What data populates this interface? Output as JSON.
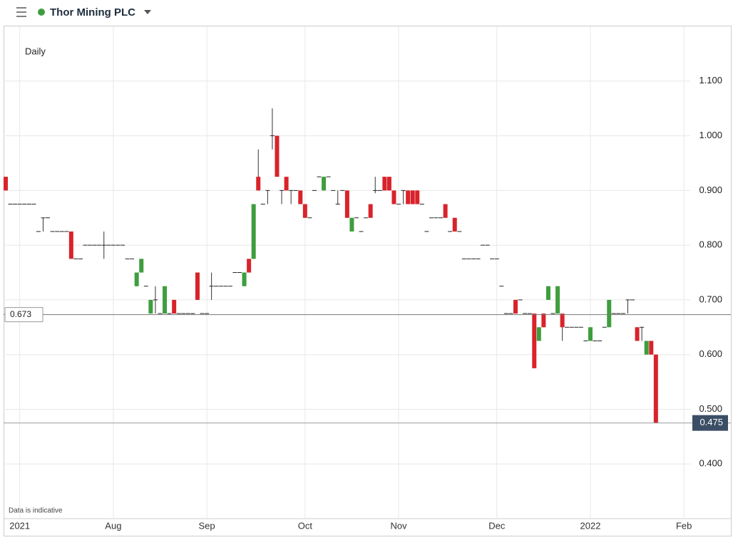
{
  "header": {
    "title": "Thor Mining PLC"
  },
  "chart_data": {
    "type": "candlestick",
    "timeframe": "Daily",
    "note": "Data is indicative",
    "categories": [
      null,
      null,
      null,
      "2021",
      null,
      null,
      null,
      null,
      null,
      null,
      null,
      null,
      null,
      null,
      null,
      null,
      null,
      null,
      null,
      null,
      null,
      null,
      null,
      "Aug",
      null,
      null,
      null,
      null,
      null,
      null,
      null,
      null,
      null,
      null,
      null,
      null,
      null,
      null,
      null,
      null,
      null,
      null,
      null,
      "Sep",
      null,
      null,
      null,
      null,
      null,
      null,
      null,
      null,
      null,
      null,
      null,
      null,
      null,
      null,
      null,
      null,
      null,
      null,
      null,
      null,
      "Oct",
      null,
      null,
      null,
      null,
      null,
      null,
      null,
      null,
      null,
      null,
      null,
      null,
      null,
      null,
      null,
      null,
      null,
      null,
      null,
      "Nov",
      null,
      null,
      null,
      null,
      null,
      null,
      null,
      null,
      null,
      null,
      null,
      null,
      null,
      null,
      null,
      null,
      null,
      null,
      null,
      null,
      "Dec",
      null,
      null,
      null,
      null,
      null,
      null,
      null,
      null,
      null,
      null,
      null,
      null,
      null,
      null,
      null,
      null,
      null,
      null,
      null,
      "2022",
      null,
      null,
      null,
      null,
      null,
      null,
      null,
      null,
      null,
      null,
      null,
      null,
      null,
      null,
      null,
      null,
      null,
      null,
      null,
      "Feb"
    ],
    "open": [
      0.925,
      0.875,
      0.875,
      0.875,
      0.875,
      0.875,
      0.875,
      0.825,
      0.85,
      0.85,
      0.825,
      0.825,
      0.825,
      0.825,
      0.825,
      0.775,
      0.775,
      0.8,
      0.8,
      0.8,
      0.8,
      0.8,
      0.8,
      0.8,
      0.8,
      0.8,
      0.775,
      0.775,
      0.725,
      0.75,
      0.725,
      0.675,
      0.7,
      0.675,
      0.675,
      0.675,
      0.7,
      0.675,
      0.675,
      0.675,
      0.675,
      0.75,
      0.675,
      0.675,
      0.725,
      0.725,
      0.725,
      0.725,
      0.725,
      0.75,
      0.75,
      0.725,
      0.775,
      0.775,
      0.925,
      0.875,
      0.9,
      1.0,
      1.0,
      0.9,
      0.925,
      0.9,
      0.9,
      0.9,
      0.875,
      0.85,
      0.9,
      0.925,
      0.9,
      0.925,
      0.9,
      0.875,
      0.9,
      0.9,
      0.825,
      0.85,
      0.825,
      0.85,
      0.875,
      0.9,
      0.9,
      0.925,
      0.925,
      0.9,
      0.875,
      0.9,
      0.9,
      0.9,
      0.9,
      0.875,
      0.825,
      0.85,
      0.85,
      0.85,
      0.875,
      0.825,
      0.85,
      0.825,
      0.775,
      0.775,
      0.775,
      0.775,
      0.8,
      0.8,
      0.775,
      0.775,
      0.725,
      0.675,
      0.675,
      0.7,
      0.7,
      0.675,
      0.675,
      0.675,
      0.625,
      0.675,
      0.7,
      0.675,
      0.675,
      0.675,
      0.65,
      0.65,
      0.65,
      0.65,
      0.625,
      0.625,
      0.625,
      0.625,
      0.65,
      0.65,
      0.675,
      0.675,
      0.675,
      0.7,
      0.7,
      0.65,
      0.65,
      0.6,
      0.625,
      0.6,
      null,
      null,
      null,
      null,
      null,
      null
    ],
    "high": [
      0.925,
      0.875,
      0.875,
      0.875,
      0.875,
      0.875,
      0.875,
      0.825,
      0.85,
      0.85,
      0.825,
      0.825,
      0.825,
      0.825,
      0.825,
      0.775,
      0.775,
      0.8,
      0.8,
      0.8,
      0.8,
      0.825,
      0.8,
      0.8,
      0.8,
      0.8,
      0.775,
      0.775,
      0.75,
      0.775,
      0.725,
      0.7,
      0.725,
      0.675,
      0.725,
      0.675,
      0.7,
      0.675,
      0.675,
      0.675,
      0.675,
      0.75,
      0.675,
      0.675,
      0.75,
      0.725,
      0.725,
      0.725,
      0.725,
      0.75,
      0.75,
      0.75,
      0.775,
      0.875,
      0.975,
      0.875,
      0.9,
      1.05,
      1.0,
      0.9,
      0.925,
      0.9,
      0.9,
      0.9,
      0.875,
      0.85,
      0.9,
      0.925,
      0.925,
      0.925,
      0.9,
      0.9,
      0.9,
      0.9,
      0.85,
      0.85,
      0.825,
      0.85,
      0.875,
      0.925,
      0.9,
      0.925,
      0.925,
      0.9,
      0.875,
      0.9,
      0.9,
      0.9,
      0.9,
      0.875,
      0.825,
      0.85,
      0.85,
      0.85,
      0.875,
      0.825,
      0.85,
      0.825,
      0.775,
      0.775,
      0.775,
      0.775,
      0.8,
      0.8,
      0.775,
      0.775,
      0.725,
      0.675,
      0.675,
      0.7,
      0.7,
      0.675,
      0.675,
      0.675,
      0.65,
      0.675,
      0.725,
      0.675,
      0.725,
      0.675,
      0.65,
      0.65,
      0.65,
      0.65,
      0.625,
      0.65,
      0.625,
      0.625,
      0.65,
      0.7,
      0.675,
      0.675,
      0.675,
      0.7,
      0.7,
      0.65,
      0.65,
      0.625,
      0.625,
      0.6,
      null,
      null,
      null,
      null,
      null,
      null
    ],
    "low": [
      0.9,
      0.875,
      0.875,
      0.875,
      0.875,
      0.875,
      0.875,
      0.825,
      0.825,
      0.85,
      0.825,
      0.825,
      0.825,
      0.825,
      0.775,
      0.775,
      0.775,
      0.8,
      0.8,
      0.8,
      0.8,
      0.775,
      0.8,
      0.8,
      0.8,
      0.8,
      0.775,
      0.775,
      0.725,
      0.75,
      0.725,
      0.675,
      0.675,
      0.675,
      0.675,
      0.675,
      0.675,
      0.675,
      0.675,
      0.675,
      0.675,
      0.7,
      0.675,
      0.675,
      0.7,
      0.725,
      0.725,
      0.725,
      0.725,
      0.75,
      0.75,
      0.725,
      0.75,
      0.775,
      0.9,
      0.875,
      0.875,
      0.975,
      0.925,
      0.875,
      0.9,
      0.875,
      0.9,
      0.875,
      0.85,
      0.85,
      0.9,
      0.925,
      0.9,
      0.925,
      0.9,
      0.875,
      0.9,
      0.85,
      0.825,
      0.85,
      0.825,
      0.85,
      0.85,
      0.895,
      0.9,
      0.9,
      0.9,
      0.875,
      0.875,
      0.875,
      0.875,
      0.875,
      0.875,
      0.875,
      0.825,
      0.85,
      0.85,
      0.85,
      0.85,
      0.825,
      0.825,
      0.825,
      0.775,
      0.775,
      0.775,
      0.775,
      0.8,
      0.8,
      0.775,
      0.775,
      0.725,
      0.675,
      0.675,
      0.675,
      0.7,
      0.675,
      0.675,
      0.575,
      0.625,
      0.65,
      0.7,
      0.675,
      0.675,
      0.625,
      0.65,
      0.65,
      0.65,
      0.65,
      0.625,
      0.625,
      0.625,
      0.625,
      0.65,
      0.65,
      0.675,
      0.675,
      0.675,
      0.675,
      0.7,
      0.625,
      0.625,
      0.6,
      0.6,
      0.475,
      null,
      null,
      null,
      null,
      null,
      null
    ],
    "close": [
      0.9,
      0.875,
      0.875,
      0.875,
      0.875,
      0.875,
      0.875,
      0.825,
      0.85,
      0.85,
      0.825,
      0.825,
      0.825,
      0.825,
      0.775,
      0.775,
      0.775,
      0.8,
      0.8,
      0.8,
      0.8,
      0.8,
      0.8,
      0.8,
      0.8,
      0.8,
      0.775,
      0.775,
      0.75,
      0.775,
      0.725,
      0.7,
      0.7,
      0.675,
      0.725,
      0.675,
      0.675,
      0.675,
      0.675,
      0.675,
      0.675,
      0.7,
      0.675,
      0.675,
      0.725,
      0.725,
      0.725,
      0.725,
      0.725,
      0.75,
      0.75,
      0.75,
      0.75,
      0.875,
      0.9,
      0.875,
      0.9,
      1.0,
      0.925,
      0.9,
      0.9,
      0.9,
      0.9,
      0.875,
      0.85,
      0.85,
      0.9,
      0.925,
      0.925,
      0.925,
      0.9,
      0.875,
      0.9,
      0.85,
      0.85,
      0.85,
      0.825,
      0.85,
      0.85,
      0.9,
      0.9,
      0.9,
      0.9,
      0.875,
      0.875,
      0.9,
      0.875,
      0.875,
      0.875,
      0.875,
      0.825,
      0.85,
      0.85,
      0.85,
      0.85,
      0.825,
      0.825,
      0.825,
      0.775,
      0.775,
      0.775,
      0.775,
      0.8,
      0.8,
      0.775,
      0.775,
      0.725,
      0.675,
      0.675,
      0.675,
      0.7,
      0.675,
      0.675,
      0.575,
      0.65,
      0.65,
      0.725,
      0.675,
      0.725,
      0.65,
      0.65,
      0.65,
      0.65,
      0.65,
      0.625,
      0.65,
      0.625,
      0.625,
      0.65,
      0.7,
      0.675,
      0.675,
      0.675,
      0.7,
      0.7,
      0.625,
      0.65,
      0.625,
      0.6,
      0.475,
      null,
      null,
      null,
      null,
      null,
      null
    ],
    "up_color": "#3e9e3e",
    "down_color": "#d9232b",
    "ylim": [
      0.304,
      1.2
    ],
    "yticks": [
      {
        "value": 0.4,
        "label": "0.400"
      },
      {
        "value": 0.5,
        "label": "0.500"
      },
      {
        "value": 0.6,
        "label": "0.600"
      },
      {
        "value": 0.7,
        "label": "0.700"
      },
      {
        "value": 0.8,
        "label": "0.800"
      },
      {
        "value": 0.9,
        "label": "0.900"
      },
      {
        "value": 1.0,
        "label": "1.000"
      },
      {
        "value": 1.1,
        "label": "1.100"
      }
    ],
    "reference_price": 0.673,
    "last_price": 0.475,
    "grid": true
  }
}
